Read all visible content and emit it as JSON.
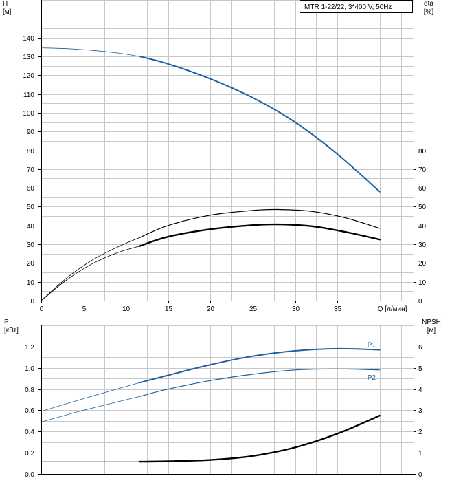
{
  "colors": {
    "blue": "#1f5fa0",
    "black": "#000000",
    "grid": "#c8c8c8"
  },
  "chart_data": [
    {
      "type": "line",
      "panel": "top",
      "title": "MTR 1-22/22, 3*400 V, 50Hz",
      "xlabel": "Q [л/мин]",
      "ylabel_left": "H\n[м]",
      "ylabel_right": "eta\n[%]",
      "xlim": [
        0,
        44
      ],
      "ylim_left": [
        0,
        160
      ],
      "ylim_right": [
        0,
        160
      ],
      "x_ticks": [
        0,
        5,
        10,
        15,
        20,
        25,
        30,
        35
      ],
      "y_ticks_left": [
        0,
        10,
        20,
        30,
        40,
        50,
        60,
        70,
        80,
        90,
        100,
        110,
        120,
        130,
        140
      ],
      "y_ticks_right": [
        0,
        10,
        20,
        30,
        40,
        50,
        60,
        70,
        80
      ],
      "grid": true,
      "series": [
        {
          "id": "H-extrapolated",
          "axis": "left",
          "color": "#1f5fa0",
          "width": 0.8,
          "x": [
            0,
            3,
            6,
            9,
            11.6
          ],
          "y": [
            134.5,
            134.1,
            133.2,
            131.8,
            130
          ]
        },
        {
          "id": "H",
          "axis": "left",
          "color": "#1f5fa0",
          "width": 2,
          "x": [
            11.6,
            15,
            20,
            25,
            30,
            35,
            40
          ],
          "y": [
            130,
            126,
            118,
            108,
            95,
            78,
            58
          ]
        },
        {
          "id": "eta-extrapolated",
          "axis": "right",
          "color": "#000000",
          "width": 0.8,
          "x": [
            0,
            3,
            6,
            9,
            11.6
          ],
          "y": [
            0,
            12,
            21.5,
            28.5,
            33.5
          ]
        },
        {
          "id": "eta",
          "axis": "right",
          "color": "#000000",
          "width": 1.2,
          "x": [
            11.6,
            15,
            20,
            25,
            28,
            32,
            36,
            40
          ],
          "y": [
            33.5,
            40,
            45.5,
            48,
            48.5,
            47.5,
            44,
            38.5
          ]
        },
        {
          "id": "eta-total-extrapolated",
          "axis": "right",
          "color": "#000000",
          "width": 0.8,
          "x": [
            0,
            3,
            6,
            9,
            11.6
          ],
          "y": [
            0,
            11,
            19.5,
            25.5,
            29
          ]
        },
        {
          "id": "eta-total",
          "axis": "right",
          "color": "#000000",
          "width": 2.4,
          "x": [
            11.6,
            15,
            20,
            25,
            28,
            32,
            36,
            40
          ],
          "y": [
            29,
            34,
            38,
            40.2,
            40.6,
            39.6,
            36.5,
            32.5
          ]
        }
      ]
    },
    {
      "type": "line",
      "panel": "bottom",
      "ylabel_left": "P\n[кВт]",
      "ylabel_right": "NPSH\n[м]",
      "xlim": [
        0,
        44
      ],
      "ylim_left": [
        0,
        1.4
      ],
      "ylim_right": [
        0,
        7
      ],
      "y_ticks_left": [
        "0.0",
        "0.2",
        "0.4",
        "0.6",
        "0.8",
        "1.0",
        "1.2"
      ],
      "y_ticks_right": [
        0,
        1,
        2,
        3,
        4,
        5,
        6
      ],
      "grid": true,
      "series": [
        {
          "id": "P1-extrapolated",
          "axis": "left",
          "color": "#1f5fa0",
          "width": 0.8,
          "x": [
            0,
            5,
            11.6
          ],
          "y": [
            0.59,
            0.71,
            0.86
          ]
        },
        {
          "id": "P1",
          "name": "P1",
          "axis": "left",
          "color": "#1f5fa0",
          "width": 2,
          "x": [
            11.6,
            15,
            20,
            25,
            30,
            35,
            40
          ],
          "y": [
            0.86,
            0.93,
            1.03,
            1.11,
            1.16,
            1.18,
            1.17
          ]
        },
        {
          "id": "P2-extrapolated",
          "axis": "left",
          "color": "#1f5fa0",
          "width": 0.8,
          "x": [
            0,
            5,
            11.6
          ],
          "y": [
            0.49,
            0.6,
            0.73
          ]
        },
        {
          "id": "P2",
          "name": "P2",
          "axis": "left",
          "color": "#1f5fa0",
          "width": 1.2,
          "x": [
            11.6,
            15,
            20,
            25,
            30,
            35,
            40
          ],
          "y": [
            0.73,
            0.8,
            0.88,
            0.94,
            0.98,
            0.99,
            0.98
          ]
        },
        {
          "id": "NPSH-extrapolated",
          "axis": "right",
          "color": "#000000",
          "width": 0.8,
          "x": [
            0,
            5,
            11.6
          ],
          "y": [
            0.58,
            0.58,
            0.58
          ]
        },
        {
          "id": "NPSH",
          "axis": "right",
          "color": "#000000",
          "width": 2.4,
          "x": [
            11.6,
            15,
            20,
            25,
            30,
            35,
            40
          ],
          "y": [
            0.58,
            0.6,
            0.66,
            0.85,
            1.25,
            1.9,
            2.75
          ]
        }
      ]
    }
  ]
}
